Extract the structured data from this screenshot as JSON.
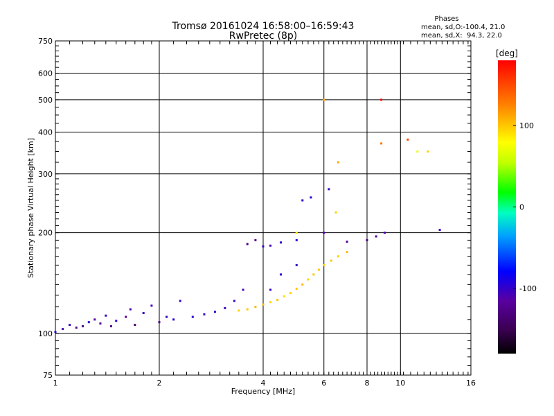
{
  "chart_data": {
    "type": "scatter",
    "title": "Tromsø 20161024 16:58:00–16:59:43",
    "subtitle": "RwPretec (8p)",
    "xlabel": "Frequency [MHz]",
    "ylabel": "Stationary phase Virtual Height [km]",
    "x_scale": "log",
    "y_scale": "log",
    "xlim": [
      1,
      16
    ],
    "ylim": [
      75,
      750
    ],
    "x_ticks": [
      1,
      2,
      4,
      6,
      8,
      10,
      16
    ],
    "x_tick_labels": [
      "1",
      "2",
      "4",
      "6",
      "8",
      "10",
      "16"
    ],
    "y_ticks": [
      75,
      100,
      200,
      300,
      400,
      500,
      600,
      750
    ],
    "y_tick_labels": [
      "75",
      "100",
      "200",
      "300",
      "400",
      "500",
      "600",
      "750"
    ],
    "grid": true,
    "stats": {
      "heading": "Phases",
      "line1": "mean, sd,O:-100.4, 21.0",
      "line2": "mean, sd,X:  94.3, 22.0"
    },
    "colorbar": {
      "label": "[deg]",
      "range": [
        -180,
        180
      ],
      "ticks": [
        100,
        0,
        -100
      ],
      "tick_labels": [
        "100",
        "0",
        "-100"
      ],
      "colormap": "rainbow"
    },
    "series": [
      {
        "name": "O",
        "points": [
          [
            1.0,
            101,
            -95
          ],
          [
            1.05,
            103,
            -110
          ],
          [
            1.1,
            106,
            -100
          ],
          [
            1.15,
            104,
            -120
          ],
          [
            1.2,
            105,
            -130
          ],
          [
            1.25,
            108,
            -100
          ],
          [
            1.3,
            110,
            -115
          ],
          [
            1.35,
            107,
            -125
          ],
          [
            1.4,
            113,
            -100
          ],
          [
            1.45,
            105,
            -130
          ],
          [
            1.5,
            109,
            -95
          ],
          [
            1.6,
            112,
            -120
          ],
          [
            1.65,
            118,
            -110
          ],
          [
            1.7,
            106,
            -140
          ],
          [
            1.8,
            115,
            -100
          ],
          [
            1.9,
            121,
            -105
          ],
          [
            2.0,
            108,
            -130
          ],
          [
            2.1,
            112,
            -100
          ],
          [
            2.2,
            110,
            -95
          ],
          [
            2.3,
            125,
            -100
          ],
          [
            2.5,
            112,
            -95
          ],
          [
            2.7,
            114,
            -100
          ],
          [
            2.9,
            116,
            -100
          ],
          [
            3.1,
            119,
            -105
          ],
          [
            3.3,
            125,
            -100
          ],
          [
            3.5,
            135,
            -110
          ],
          [
            3.6,
            185,
            -135
          ],
          [
            3.8,
            190,
            -120
          ],
          [
            4.0,
            182,
            -100
          ],
          [
            4.2,
            183,
            -110
          ],
          [
            4.5,
            187,
            -100
          ],
          [
            5.0,
            190,
            -95
          ],
          [
            5.2,
            250,
            -100
          ],
          [
            5.5,
            255,
            -95
          ],
          [
            6.0,
            200,
            -110
          ],
          [
            6.2,
            270,
            -100
          ],
          [
            7.0,
            188,
            -125
          ],
          [
            8.0,
            190,
            -130
          ],
          [
            8.5,
            195,
            -120
          ],
          [
            9.0,
            200,
            -110
          ],
          [
            4.2,
            135,
            -100
          ],
          [
            4.5,
            150,
            -95
          ],
          [
            5.0,
            160,
            -100
          ],
          [
            13.0,
            204,
            -100
          ]
        ]
      },
      {
        "name": "X",
        "points": [
          [
            3.4,
            117,
            95
          ],
          [
            3.6,
            118,
            100
          ],
          [
            3.8,
            120,
            105
          ],
          [
            4.0,
            122,
            100
          ],
          [
            4.2,
            124,
            95
          ],
          [
            4.4,
            126,
            100
          ],
          [
            4.6,
            129,
            90
          ],
          [
            4.8,
            132,
            95
          ],
          [
            5.0,
            136,
            100
          ],
          [
            5.2,
            140,
            105
          ],
          [
            5.4,
            145,
            95
          ],
          [
            5.6,
            150,
            100
          ],
          [
            5.8,
            155,
            100
          ],
          [
            6.0,
            160,
            95
          ],
          [
            6.3,
            165,
            100
          ],
          [
            6.6,
            170,
            95
          ],
          [
            7.0,
            175,
            105
          ],
          [
            5.0,
            200,
            90
          ],
          [
            6.5,
            230,
            95
          ],
          [
            6.6,
            325,
            110
          ],
          [
            8.8,
            370,
            130
          ],
          [
            10.5,
            380,
            150
          ],
          [
            11.2,
            350,
            70
          ],
          [
            12.0,
            350,
            95
          ],
          [
            8.8,
            500,
            180
          ],
          [
            6.0,
            500,
            110
          ]
        ]
      }
    ]
  }
}
